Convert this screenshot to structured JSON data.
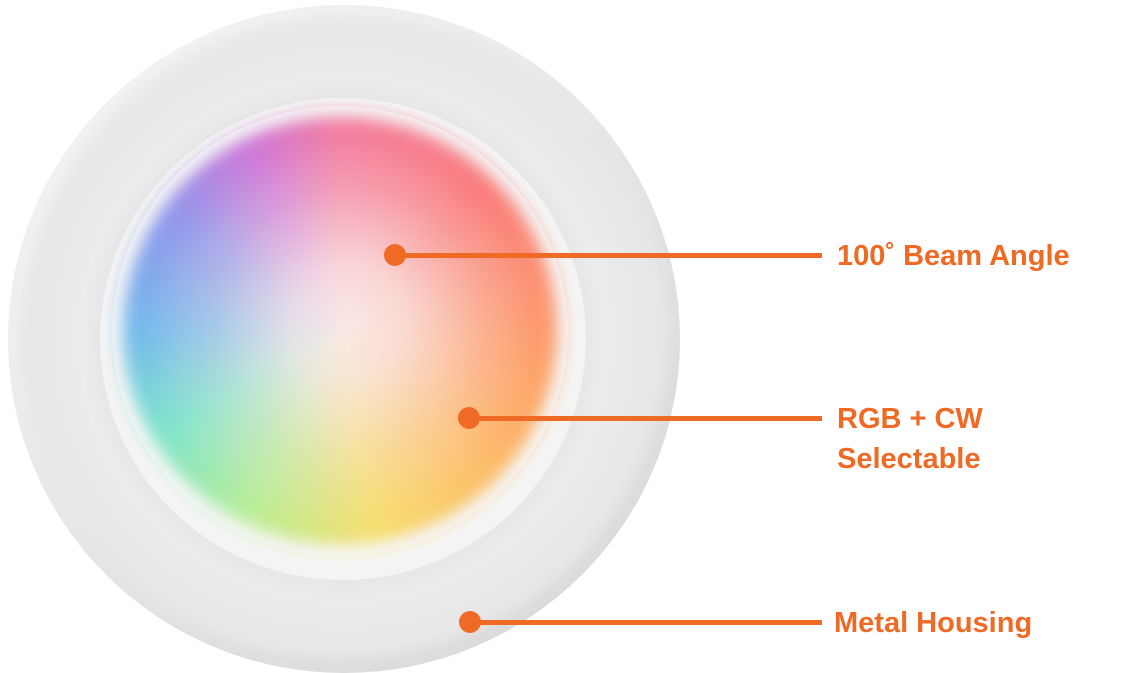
{
  "colors": {
    "accent": "#ee6a25",
    "background": "#ffffff",
    "housing": "#e6e6e6"
  },
  "callouts": [
    {
      "lines": [
        "100˚ Beam Angle"
      ]
    },
    {
      "lines": [
        "RGB + CW",
        "Selectable"
      ]
    },
    {
      "lines": [
        "Metal Housing"
      ]
    }
  ]
}
